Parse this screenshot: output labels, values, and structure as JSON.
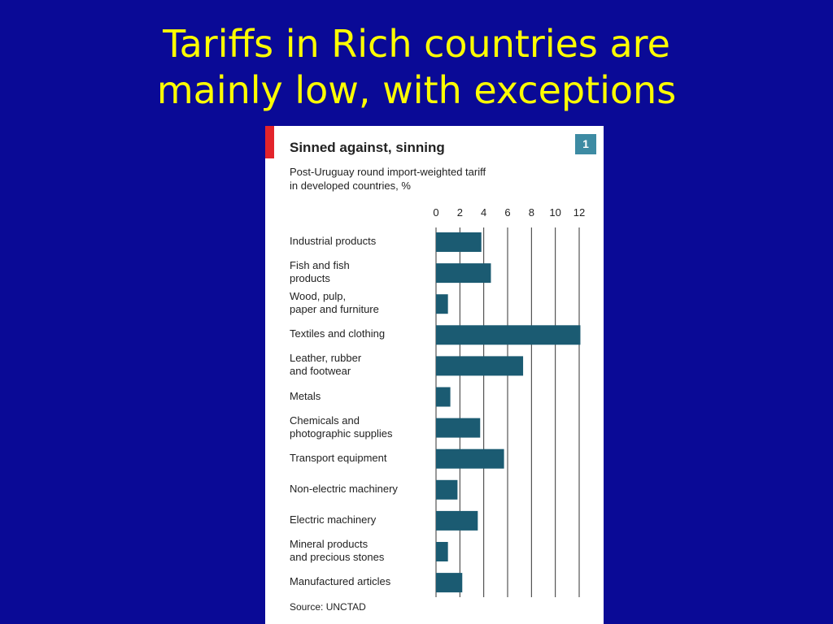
{
  "slide": {
    "title": "Tariffs in Rich countries are\nmainly low, with exceptions"
  },
  "chart_data": {
    "type": "hbar",
    "title": "Sinned against, sinning",
    "subtitle": "Post-Uruguay round import-weighted tariff\nin developed countries, %",
    "badge": "1",
    "source": "Source: UNCTAD",
    "categories": [
      "Industrial products",
      "Fish and fish\nproducts",
      "Wood, pulp,\npaper and furniture",
      "Textiles and clothing",
      "Leather, rubber\nand footwear",
      "Metals",
      "Chemicals and\nphotographic supplies",
      "Transport equipment",
      "Non-electric machinery",
      "Electric machinery",
      "Mineral products\nand precious stones",
      "Manufactured articles"
    ],
    "values": [
      3.8,
      4.6,
      1.0,
      12.1,
      7.3,
      1.2,
      3.7,
      5.7,
      1.8,
      3.5,
      1.0,
      2.2
    ],
    "color": "#1b5b72",
    "xlim": [
      0,
      12
    ],
    "xticks": [
      0,
      2,
      4,
      6,
      8,
      10,
      12
    ],
    "grid": true
  }
}
